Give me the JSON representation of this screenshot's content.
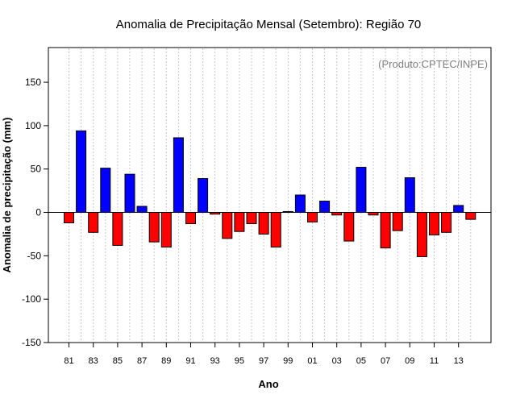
{
  "chart_data": {
    "type": "bar",
    "title": "Anomalia de Precipitação Mensal (Setembro): Região 70",
    "xlabel": "Ano",
    "ylabel": "Anomalia de precipitação (mm)",
    "source_label": "(Produto:CPTEC/INPE)",
    "ylim": [
      -150,
      190
    ],
    "yticks": [
      -150,
      -100,
      -50,
      0,
      50,
      100,
      150
    ],
    "ytick_labels": [
      "-150",
      "-100",
      "-50",
      "0",
      "50",
      "100",
      "150"
    ],
    "xtick_labels": [
      "81",
      "83",
      "85",
      "87",
      "89",
      "91",
      "93",
      "95",
      "97",
      "99",
      "01",
      "03",
      "05",
      "07",
      "09",
      "11",
      "13"
    ],
    "grid": true,
    "positive_color": "#0000ff",
    "negative_color": "#ff0000",
    "categories": [
      "1981",
      "1982",
      "1983",
      "1984",
      "1985",
      "1986",
      "1987",
      "1988",
      "1989",
      "1990",
      "1991",
      "1992",
      "1993",
      "1994",
      "1995",
      "1996",
      "1997",
      "1998",
      "1999",
      "2000",
      "2001",
      "2002",
      "2003",
      "2004",
      "2005",
      "2006",
      "2007",
      "2008",
      "2009",
      "2010",
      "2011",
      "2012",
      "2013",
      "2014"
    ],
    "values": [
      -12,
      94,
      -23,
      51,
      -38,
      44,
      7,
      -34,
      -40,
      86,
      -13,
      39,
      -2,
      -30,
      -22,
      -13,
      -25,
      -40,
      1,
      20,
      -11,
      13,
      -3,
      -33,
      52,
      -3,
      -41,
      -21,
      40,
      -51,
      -26,
      -23,
      8,
      -8
    ]
  }
}
